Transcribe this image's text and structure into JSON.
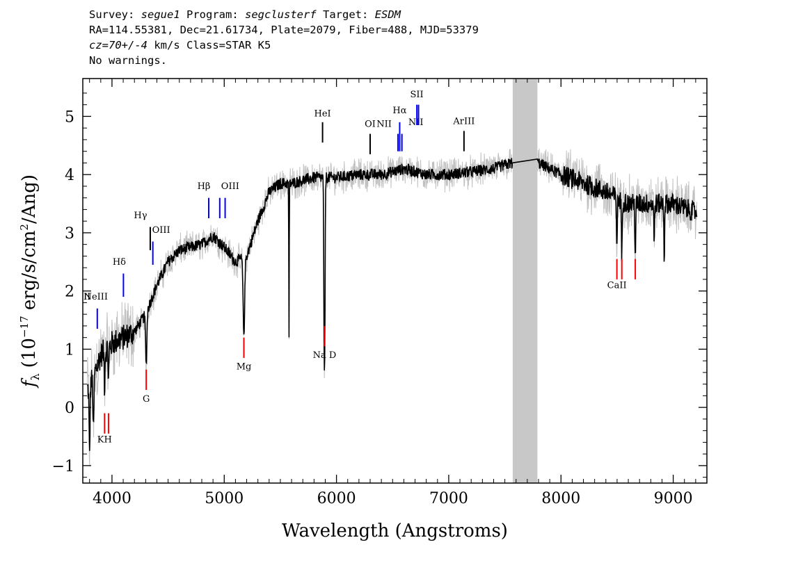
{
  "header": {
    "survey_label": "Survey:",
    "survey": "segue1",
    "program_label": "Program:",
    "program": "segclusterf",
    "target_label": "Target:",
    "target": "ESDM",
    "line2": "RA=114.55381, Dec=21.61734, Plate=2079, Fiber=488, MJD=53379",
    "cz": "cz=70+/-4",
    "cz_rest": "km/s Class=STAR K5",
    "warnings": "No warnings."
  },
  "chart_data": {
    "type": "line",
    "xlabel": "Wavelength (Angstroms)",
    "ylabel_prefix": "f",
    "ylabel_sub": "λ",
    "ylabel_rest": "(10",
    "ylabel_exp": "−17",
    "ylabel_units": " erg/s/cm",
    "ylabel_sq": "2",
    "ylabel_tail": "/Ang)",
    "xlim": [
      3740,
      9300
    ],
    "ylim": [
      -1.3,
      5.65
    ],
    "x_ticks": [
      4000,
      5000,
      6000,
      7000,
      8000,
      9000
    ],
    "y_ticks": [
      -1,
      0,
      1,
      2,
      3,
      4,
      5
    ],
    "masked_band": [
      7570,
      7790
    ],
    "colors": {
      "flux": "#000000",
      "error": "#c0c0c0",
      "band": "#c8c8c8",
      "emission": "#0000ff",
      "absorption": "#ff0000"
    },
    "continuum_knots": [
      [
        3780,
        0.3
      ],
      [
        3830,
        0.5
      ],
      [
        3900,
        0.9
      ],
      [
        3950,
        1.0
      ],
      [
        4000,
        1.1
      ],
      [
        4100,
        1.2
      ],
      [
        4200,
        1.3
      ],
      [
        4300,
        1.6
      ],
      [
        4400,
        2.1
      ],
      [
        4500,
        2.5
      ],
      [
        4600,
        2.7
      ],
      [
        4700,
        2.75
      ],
      [
        4800,
        2.8
      ],
      [
        4900,
        2.95
      ],
      [
        5000,
        2.75
      ],
      [
        5100,
        2.5
      ],
      [
        5200,
        2.6
      ],
      [
        5300,
        3.2
      ],
      [
        5400,
        3.7
      ],
      [
        5500,
        3.85
      ],
      [
        5600,
        3.85
      ],
      [
        5800,
        3.95
      ],
      [
        6000,
        3.95
      ],
      [
        6200,
        4.0
      ],
      [
        6400,
        4.0
      ],
      [
        6600,
        4.1
      ],
      [
        6800,
        4.0
      ],
      [
        7000,
        4.0
      ],
      [
        7200,
        4.05
      ],
      [
        7400,
        4.1
      ],
      [
        7560,
        4.2
      ],
      [
        7800,
        4.2
      ],
      [
        8000,
        4.0
      ],
      [
        8200,
        3.85
      ],
      [
        8400,
        3.7
      ],
      [
        8600,
        3.5
      ],
      [
        8800,
        3.5
      ],
      [
        9000,
        3.5
      ],
      [
        9200,
        3.35
      ]
    ],
    "absorption_dips": [
      {
        "x": 3800,
        "depth": 1.2,
        "w": 6
      },
      {
        "x": 3835,
        "depth": 1.0,
        "w": 6
      },
      {
        "x": 3934,
        "depth": 0.6,
        "w": 5
      },
      {
        "x": 3969,
        "depth": 0.6,
        "w": 5
      },
      {
        "x": 4305,
        "depth": 0.9,
        "w": 8
      },
      {
        "x": 5175,
        "depth": 1.3,
        "w": 10
      },
      {
        "x": 5577,
        "depth": 2.6,
        "w": 3
      },
      {
        "x": 5890,
        "depth": 2.5,
        "w": 5
      },
      {
        "x": 5896,
        "depth": 2.4,
        "w": 5
      },
      {
        "x": 8498,
        "depth": 0.8,
        "w": 5
      },
      {
        "x": 8542,
        "depth": 1.0,
        "w": 5
      },
      {
        "x": 8662,
        "depth": 0.9,
        "w": 5
      },
      {
        "x": 8830,
        "depth": 0.8,
        "w": 4
      },
      {
        "x": 8920,
        "depth": 1.0,
        "w": 4
      }
    ],
    "emission_lines": [
      {
        "label": "NeIII",
        "x": 3869,
        "y0": 1.35,
        "y1": 1.7,
        "ly": 1.85,
        "dx": -2,
        "color": "#0000ff"
      },
      {
        "label": "Hδ",
        "x": 4102,
        "y0": 1.9,
        "y1": 2.3,
        "ly": 2.45,
        "dx": -6,
        "color": "#0000ff"
      },
      {
        "label": "Hγ",
        "x": 4341,
        "y0": 2.7,
        "y1": 3.1,
        "ly": 3.25,
        "dx": -14,
        "color": "#000000"
      },
      {
        "label": "OIII",
        "x": 4364,
        "y0": 2.45,
        "y1": 2.85,
        "ly": 3.0,
        "dx": 12,
        "color": "#0000ff"
      },
      {
        "label": "Hβ",
        "x": 4862,
        "y0": 3.25,
        "y1": 3.6,
        "ly": 3.75,
        "dx": -7,
        "color": "#0000ff"
      },
      {
        "label": "OIII",
        "x": 4960,
        "y0": 3.25,
        "y1": 3.6,
        "ly": 3.75,
        "dx": 15,
        "color": "#0000ff"
      },
      {
        "label": "OIII",
        "x": 5008,
        "y0": 3.25,
        "y1": 3.6,
        "ly": null,
        "dx": 0,
        "color": "#0000ff"
      },
      {
        "label": "HeI",
        "x": 5876,
        "y0": 4.55,
        "y1": 4.9,
        "ly": 5.0,
        "dx": 0,
        "color": "#000000"
      },
      {
        "label": "OI",
        "x": 6300,
        "y0": 4.35,
        "y1": 4.7,
        "ly": 4.82,
        "dx": 0,
        "color": "#000000"
      },
      {
        "label": "NII",
        "x": 6548,
        "y0": 4.4,
        "y1": 4.7,
        "ly": 4.82,
        "dx": -20,
        "color": "#0000ff"
      },
      {
        "label": "Hα",
        "x": 6563,
        "y0": 4.4,
        "y1": 4.9,
        "ly": 5.05,
        "dx": 0,
        "color": "#0000ff"
      },
      {
        "label": "NII",
        "x": 6583,
        "y0": 4.4,
        "y1": 4.7,
        "ly": 4.85,
        "dx": 20,
        "color": "#0000ff"
      },
      {
        "label": "SII",
        "x": 6716,
        "y0": 4.85,
        "y1": 5.2,
        "ly": 5.33,
        "dx": 0,
        "color": "#0000ff"
      },
      {
        "label": "SII",
        "x": 6731,
        "y0": 4.85,
        "y1": 5.2,
        "ly": null,
        "dx": 0,
        "color": "#0000ff"
      },
      {
        "label": "ArIII",
        "x": 7136,
        "y0": 4.4,
        "y1": 4.75,
        "ly": 4.87,
        "dx": 0,
        "color": "#000000"
      }
    ],
    "absorption_lines": [
      {
        "label": "KH",
        "x": 3934,
        "y0": -0.45,
        "y1": -0.1,
        "ly": -0.6,
        "dx": 0,
        "color": "#ff0000"
      },
      {
        "label": "",
        "x": 3969,
        "y0": -0.45,
        "y1": -0.1,
        "ly": null,
        "dx": 0,
        "color": "#ff0000"
      },
      {
        "label": "G",
        "x": 4305,
        "y0": 0.3,
        "y1": 0.65,
        "ly": 0.1,
        "dx": 0,
        "color": "#ff0000"
      },
      {
        "label": "Mg",
        "x": 5175,
        "y0": 0.85,
        "y1": 1.2,
        "ly": 0.65,
        "dx": 0,
        "color": "#ff0000"
      },
      {
        "label": "Na D",
        "x": 5894,
        "y0": 1.05,
        "y1": 1.4,
        "ly": 0.85,
        "dx": 0,
        "color": "#ff0000"
      },
      {
        "label": "CaII",
        "x": 8498,
        "y0": 2.2,
        "y1": 2.55,
        "ly": 2.05,
        "dx": 0,
        "color": "#ff0000"
      },
      {
        "label": "",
        "x": 8542,
        "y0": 2.2,
        "y1": 2.55,
        "ly": null,
        "dx": 0,
        "color": "#ff0000"
      },
      {
        "label": "",
        "x": 8662,
        "y0": 2.2,
        "y1": 2.55,
        "ly": null,
        "dx": 0,
        "color": "#ff0000"
      }
    ],
    "left_edge_label": "II"
  }
}
